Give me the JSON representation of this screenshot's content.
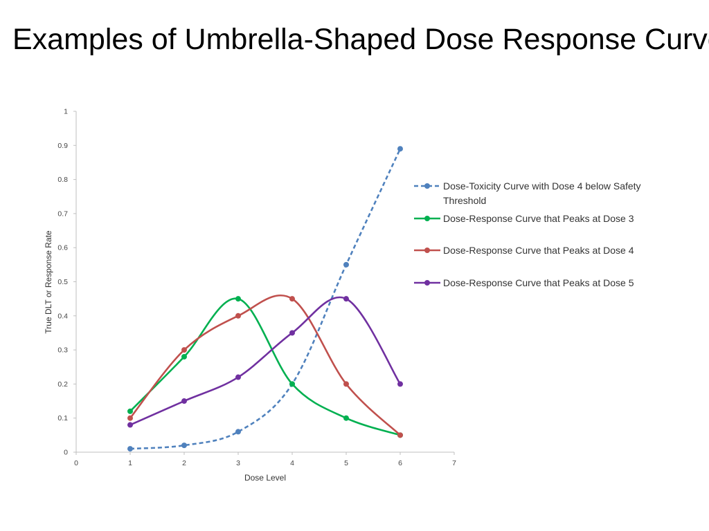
{
  "slide": {
    "title": "Examples of Umbrella-Shaped Dose Response Curves"
  },
  "chart_data": {
    "type": "scatter",
    "smooth_lines": true,
    "title": "",
    "xlabel": "Dose Level",
    "ylabel": "True DLT or Response Rate",
    "xlim": [
      0,
      7
    ],
    "ylim": [
      0,
      1
    ],
    "x_ticks": [
      "0",
      "1",
      "2",
      "3",
      "4",
      "5",
      "6",
      "7"
    ],
    "y_ticks": [
      "0",
      "0.1",
      "0.2",
      "0.3",
      "0.4",
      "0.5",
      "0.6",
      "0.7",
      "0.8",
      "0.9",
      "1"
    ],
    "grid": false,
    "legend_position": "right",
    "x": [
      1,
      2,
      3,
      4,
      5,
      6
    ],
    "series": [
      {
        "name": "Dose-Toxicity Curve with Dose 4 below Safety Threshold",
        "legend_lines": [
          "Dose-Toxicity Curve with Dose 4 below Safety",
          "Threshold"
        ],
        "values": [
          0.01,
          0.02,
          0.06,
          0.2,
          0.55,
          0.89
        ],
        "color": "#4f81bd",
        "dashed": true
      },
      {
        "name": "Dose-Response Curve that Peaks at Dose 3",
        "legend_lines": [
          "Dose-Response Curve that Peaks at Dose 3"
        ],
        "values": [
          0.12,
          0.28,
          0.45,
          0.2,
          0.1,
          0.05
        ],
        "color": "#00b050",
        "dashed": false
      },
      {
        "name": "Dose-Response Curve that Peaks at Dose 4",
        "legend_lines": [
          "Dose-Response Curve that Peaks at Dose 4"
        ],
        "values": [
          0.1,
          0.3,
          0.4,
          0.45,
          0.2,
          0.05
        ],
        "color": "#c0504d",
        "dashed": false
      },
      {
        "name": "Dose-Response Curve that Peaks at Dose 5",
        "legend_lines": [
          "Dose-Response Curve that Peaks at Dose 5"
        ],
        "values": [
          0.08,
          0.15,
          0.22,
          0.35,
          0.45,
          0.2
        ],
        "color": "#7030a0",
        "dashed": false
      }
    ]
  }
}
